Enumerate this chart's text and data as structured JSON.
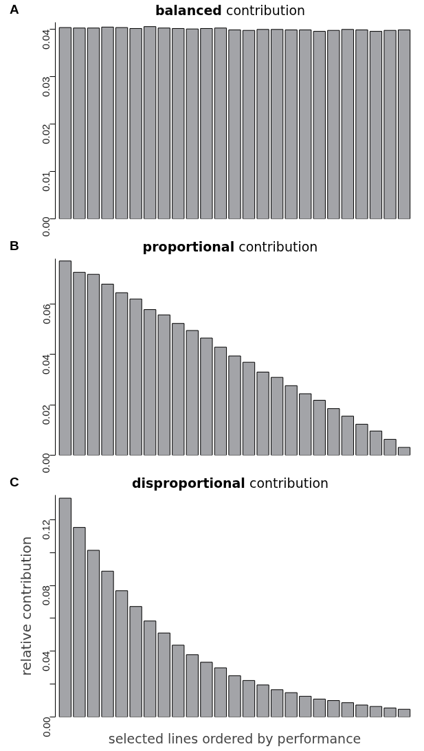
{
  "chart_data": [
    {
      "type": "bar",
      "title": "balanced contribution",
      "annotations": [
        "A"
      ],
      "categories": [
        null,
        null,
        null,
        null,
        null,
        null,
        null,
        null,
        null,
        null,
        null,
        null,
        null,
        null,
        null,
        null,
        null,
        null,
        null,
        null,
        null,
        null,
        null,
        null,
        null
      ],
      "values": [
        0.0404,
        0.0403,
        0.0403,
        0.0405,
        0.0404,
        0.0402,
        0.0406,
        0.0403,
        0.0402,
        0.0401,
        0.0402,
        0.0403,
        0.0399,
        0.0398,
        0.04,
        0.04,
        0.0399,
        0.0399,
        0.0396,
        0.0398,
        0.04,
        0.0399,
        0.0396,
        0.0398,
        0.0399
      ],
      "color": "#a3a4a8",
      "ylim": [
        0,
        0.0415
      ],
      "yticks": [
        {
          "value": 0,
          "label": "0.00"
        },
        0.01,
        0.02,
        0.03,
        0.04
      ],
      "tick_labels": "y"
    },
    {
      "type": "bar",
      "title": "proportional contribution",
      "annotations": [
        "B"
      ],
      "categories": [
        null,
        null,
        null,
        null,
        null,
        null,
        null,
        null,
        null,
        null,
        null,
        null,
        null,
        null,
        null,
        null,
        null,
        null,
        null,
        null,
        null,
        null,
        null,
        null,
        null
      ],
      "values": [
        0.0771,
        0.0726,
        0.0718,
        0.0679,
        0.0645,
        0.062,
        0.0578,
        0.0557,
        0.0523,
        0.0495,
        0.0465,
        0.0429,
        0.0394,
        0.0369,
        0.033,
        0.0309,
        0.0276,
        0.0244,
        0.0218,
        0.0185,
        0.0155,
        0.0123,
        0.0096,
        0.0063,
        0.0031
      ],
      "color": "#a3a4a8",
      "ylim": [
        0,
        0.078
      ],
      "yticks": [
        {
          "value": 0,
          "label": "0.00"
        },
        {
          "value": 0.02,
          "label": "0.02"
        },
        {
          "value": 0.04,
          "label": "0.04"
        },
        {
          "value": 0.06,
          "label": "0.06"
        }
      ],
      "tick_labels": "y"
    },
    {
      "type": "bar",
      "title": "disproportional contribution",
      "annotations": [
        "C"
      ],
      "xlabel": "selected lines ordered by performance",
      "ylabel": "relative contribution",
      "categories": [
        null,
        null,
        null,
        null,
        null,
        null,
        null,
        null,
        null,
        null,
        null,
        null,
        null,
        null,
        null,
        null,
        null,
        null,
        null,
        null,
        null,
        null,
        null,
        null,
        null
      ],
      "values": [
        0.1331,
        0.1153,
        0.1014,
        0.0887,
        0.0768,
        0.0672,
        0.0584,
        0.0511,
        0.0437,
        0.0379,
        0.0333,
        0.0299,
        0.0251,
        0.0222,
        0.0195,
        0.0166,
        0.0148,
        0.0126,
        0.0109,
        0.01,
        0.0087,
        0.0073,
        0.0064,
        0.0055,
        0.0047
      ],
      "color": "#a3a4a8",
      "ylim": [
        0,
        0.135
      ],
      "yticks": [
        {
          "value": 0,
          "label": "0.00"
        },
        {
          "value": 0.02,
          "label": null
        },
        {
          "value": 0.04,
          "label": "0.04"
        },
        {
          "value": 0.06,
          "label": null
        },
        {
          "value": 0.08,
          "label": "0.08"
        },
        {
          "value": 0.1,
          "label": null
        },
        {
          "value": 0.12,
          "label": "0.12"
        }
      ],
      "tick_labels": "y"
    }
  ]
}
